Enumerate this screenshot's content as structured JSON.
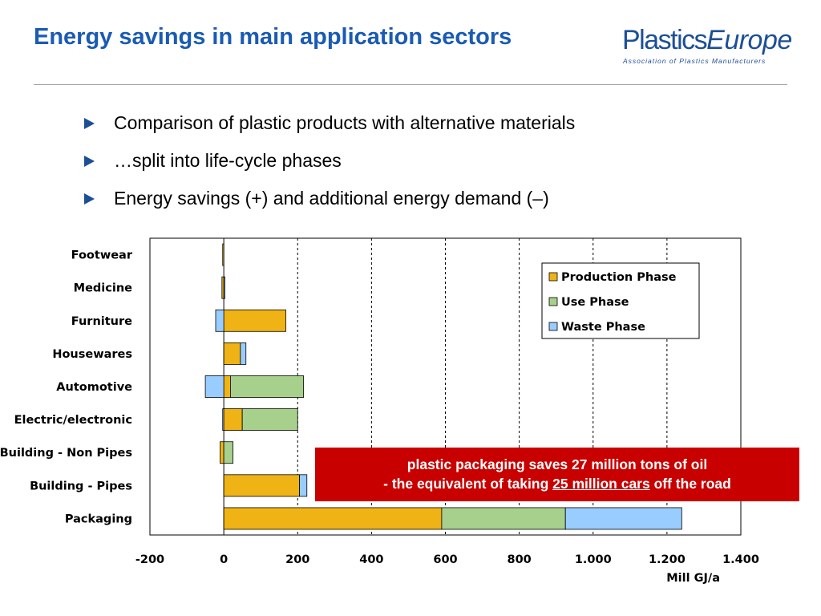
{
  "slide": {
    "title": "Energy savings in main application sectors",
    "bullets": [
      "Comparison of plastic products with alternative materials",
      "…split into life-cycle phases",
      "Energy savings (+) and additional energy demand (–)"
    ]
  },
  "logo": {
    "name_part1": "Plastics",
    "name_part2": "Europe",
    "tagline": "Association of Plastics Manufacturers"
  },
  "callout": {
    "line1": "plastic packaging saves 27 million tons of oil",
    "line2_pre": "- the equivalent of taking ",
    "line2_link": "25 million cars",
    "line2_post": " off the road"
  },
  "colors": {
    "title": "#1a5bb3",
    "production": "#f0b315",
    "use": "#a8d08d",
    "waste": "#99ccff",
    "callout": "#c80000"
  },
  "chart_data": {
    "type": "bar",
    "orientation": "horizontal",
    "stacked": true,
    "categories": [
      "Footwear",
      "Medicine",
      "Furniture",
      "Housewares",
      "Automotive",
      "Electric/electronic",
      "Building - Non Pipes",
      "Building - Pipes",
      "Packaging"
    ],
    "series": [
      {
        "name": "Production Phase",
        "color": "#f0b315",
        "values": [
          -3,
          -5,
          168,
          45,
          18,
          50,
          -10,
          205,
          590
        ]
      },
      {
        "name": "Use Phase",
        "color": "#a8d08d",
        "values": [
          0,
          0,
          0,
          0,
          198,
          150,
          25,
          0,
          335
        ]
      },
      {
        "name": "Waste Phase",
        "color": "#99ccff",
        "values": [
          0,
          3,
          -22,
          15,
          -50,
          -3,
          0,
          20,
          315
        ]
      }
    ],
    "xlim": [
      -200,
      1400
    ],
    "xticks": [
      -200,
      0,
      200,
      400,
      600,
      800,
      1000,
      1200,
      1400
    ],
    "xtick_labels": [
      "-200",
      "0",
      "200",
      "400",
      "600",
      "800",
      "1.000",
      "1.200",
      "1.400"
    ],
    "xlabel": "Mill GJ/a",
    "ylabel": "",
    "grid": "vertical dashed",
    "legend": "top-right"
  }
}
